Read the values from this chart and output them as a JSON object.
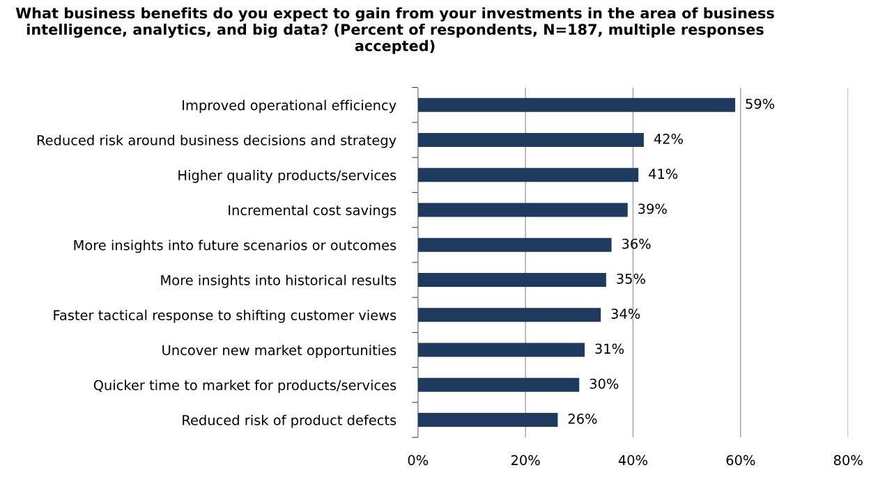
{
  "chart_data": {
    "type": "bar",
    "orientation": "horizontal",
    "title": "What business benefits do you expect to gain from your investments in the area of business intelligence, analytics, and big data? (Percent of respondents, N=187, multiple responses accepted)",
    "categories": [
      "Improved operational efficiency",
      "Reduced risk around business decisions and strategy",
      "Higher quality products/services",
      "Incremental cost savings",
      "More insights into future scenarios or outcomes",
      "More insights into historical results",
      "Faster tactical response to shifting customer views",
      "Uncover new market opportunities",
      "Quicker time to market for products/services",
      "Reduced risk of product defects"
    ],
    "values": [
      59,
      42,
      41,
      39,
      36,
      35,
      34,
      31,
      30,
      26
    ],
    "value_labels": [
      "59%",
      "42%",
      "41%",
      "39%",
      "36%",
      "35%",
      "34%",
      "31%",
      "30%",
      "26%"
    ],
    "color": "#1f3a5f",
    "xlim": [
      0,
      80
    ],
    "xticks": [
      {
        "value": 0,
        "label": "0%"
      },
      {
        "value": 20,
        "label": "20%"
      },
      {
        "value": 40,
        "label": "40%"
      },
      {
        "value": 60,
        "label": "60%"
      },
      {
        "value": 80,
        "label": "80%"
      }
    ],
    "grid": "x",
    "legend": false
  }
}
